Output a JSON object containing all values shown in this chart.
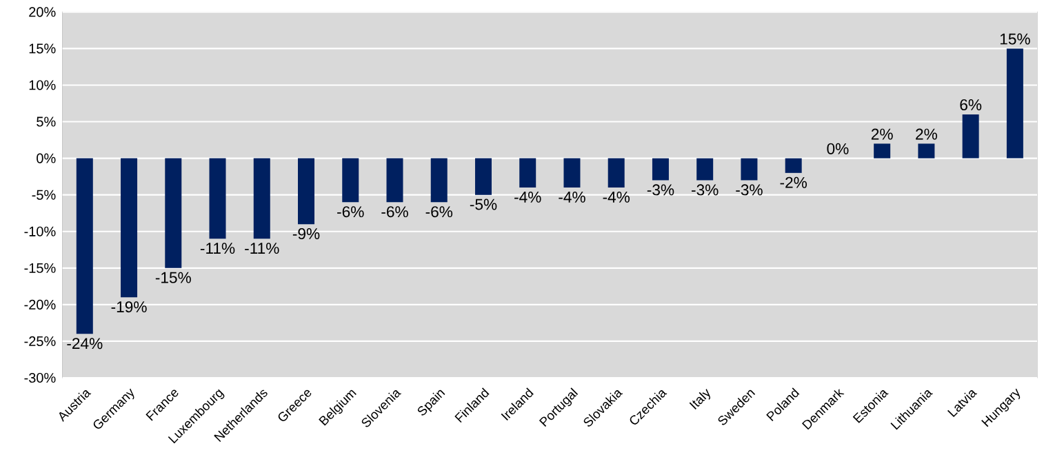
{
  "chart_data": {
    "type": "bar",
    "categories": [
      "Austria",
      "Germany",
      "France",
      "Luxembourg",
      "Netherlands",
      "Greece",
      "Belgium",
      "Slovenia",
      "Spain",
      "Finland",
      "Ireland",
      "Portugal",
      "Slovakia",
      "Czechia",
      "Italy",
      "Sweden",
      "Poland",
      "Denmark",
      "Estonia",
      "Lithuania",
      "Latvia",
      "Hungary"
    ],
    "values": [
      -24,
      -19,
      -15,
      -11,
      -11,
      -9,
      -6,
      -6,
      -6,
      -5,
      -4,
      -4,
      -4,
      -3,
      -3,
      -3,
      -2,
      0,
      2,
      2,
      6,
      15
    ],
    "value_labels": [
      "-24%",
      "-19%",
      "-15%",
      "-11%",
      "-11%",
      "-9%",
      "-6%",
      "-6%",
      "-6%",
      "-5%",
      "-4%",
      "-4%",
      "-4%",
      "-3%",
      "-3%",
      "-3%",
      "-2%",
      "0%",
      "2%",
      "2%",
      "6%",
      "15%"
    ],
    "color": "#002060",
    "ylim": [
      -30,
      20
    ],
    "yticks": [
      {
        "value": -30,
        "label": "-30%"
      },
      {
        "value": -25,
        "label": "-25%"
      },
      {
        "value": -20,
        "label": "-20%"
      },
      {
        "value": -15,
        "label": "-15%"
      },
      {
        "value": -10,
        "label": "-10%"
      },
      {
        "value": -5,
        "label": "-5%"
      },
      {
        "value": 0,
        "label": "0%"
      },
      {
        "value": 5,
        "label": "5%"
      },
      {
        "value": 10,
        "label": "10%"
      },
      {
        "value": 15,
        "label": "15%"
      },
      {
        "value": 20,
        "label": "20%"
      }
    ],
    "grid": "y"
  }
}
